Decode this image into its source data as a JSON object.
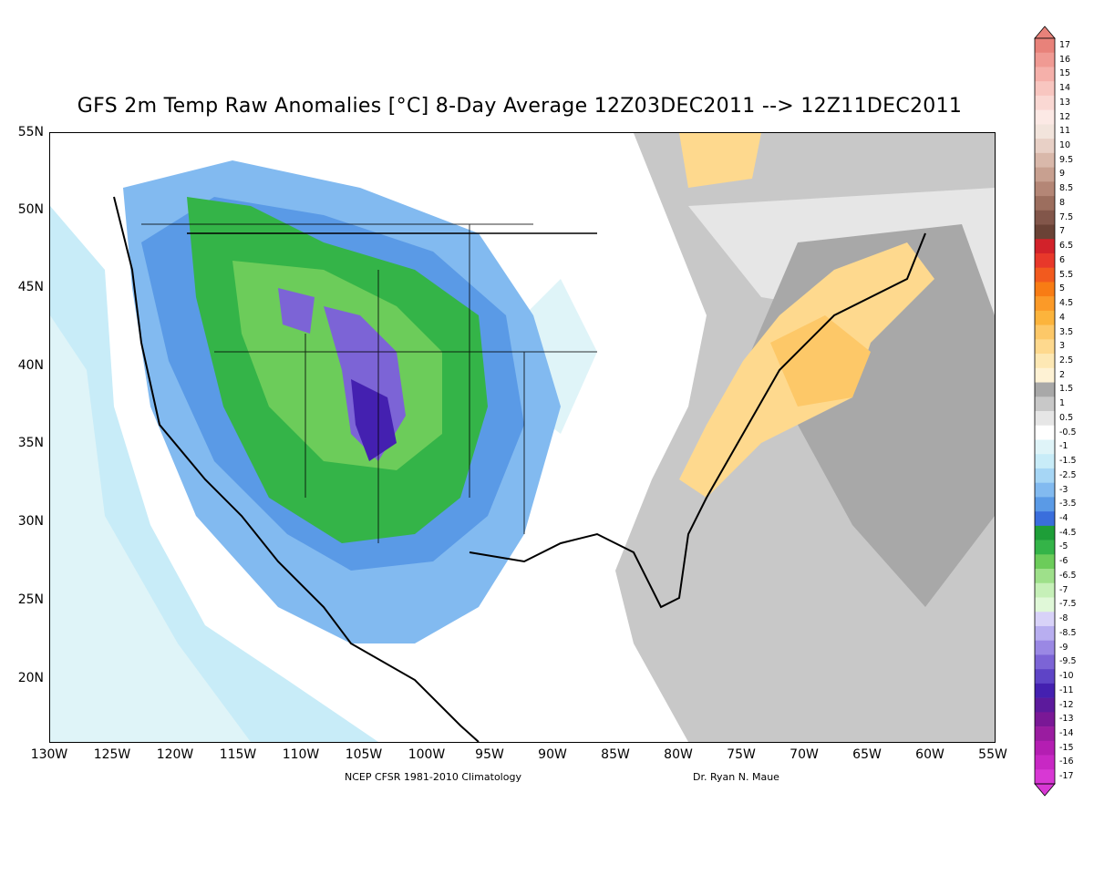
{
  "title": "GFS 2m Temp Raw Anomalies [°C] 8-Day Average 12Z03DEC2011 --> 12Z11DEC2011",
  "footer_left": "NCEP CFSR 1981-2010 Climatology",
  "footer_right": "Dr. Ryan N. Maue",
  "lat_labels": [
    "55N",
    "50N",
    "45N",
    "40N",
    "35N",
    "30N",
    "25N",
    "20N"
  ],
  "lon_labels": [
    "130W",
    "125W",
    "120W",
    "115W",
    "110W",
    "105W",
    "100W",
    "95W",
    "90W",
    "85W",
    "80W",
    "75W",
    "70W",
    "65W",
    "60W",
    "55W"
  ],
  "colorbar": {
    "labels": [
      "17",
      "16",
      "15",
      "14",
      "13",
      "12",
      "11",
      "10",
      "9.5",
      "9",
      "8.5",
      "8",
      "7.5",
      "7",
      "6.5",
      "6",
      "5.5",
      "5",
      "4.5",
      "4",
      "3.5",
      "3",
      "2.5",
      "2",
      "1.5",
      "1",
      "0.5",
      "-0.5",
      "-1",
      "-1.5",
      "-2.5",
      "-3",
      "-3.5",
      "-4",
      "-4.5",
      "-5",
      "-6",
      "-6.5",
      "-7",
      "-7.5",
      "-8",
      "-8.5",
      "-9",
      "-9.5",
      "-10",
      "-11",
      "-12",
      "-13",
      "-14",
      "-15",
      "-16",
      "-17"
    ],
    "colors": [
      "#e8827a",
      "#f09a93",
      "#f5b0aa",
      "#f8c6c0",
      "#fad8d3",
      "#fce9e5",
      "#f2e4dc",
      "#e8d0c6",
      "#d9b8aa",
      "#c8a090",
      "#b48676",
      "#9c6e5e",
      "#82564a",
      "#6a4236",
      "#d2222a",
      "#e8382a",
      "#f25a1e",
      "#f87c14",
      "#fb9a28",
      "#fcb43c",
      "#fdc868",
      "#fed98e",
      "#fde8b4",
      "#fef2d4",
      "#a8a8a8",
      "#c8c8c8",
      "#e6e6e6",
      "#ffffff",
      "#dff4f8",
      "#c8ecf8",
      "#a6d6f5",
      "#82baf0",
      "#5a9ae6",
      "#3a6edc",
      "#1e9e38",
      "#34b448",
      "#6ccc5a",
      "#9ee08a",
      "#c6f0b8",
      "#e0f8d8",
      "#d8d2f8",
      "#b8aef0",
      "#9a88e4",
      "#7c64d6",
      "#5e44c6",
      "#4420b0",
      "#5c1a9c",
      "#7a1896",
      "#9a1ca0",
      "#b41eb2",
      "#c828c4",
      "#d838d4"
    ]
  }
}
